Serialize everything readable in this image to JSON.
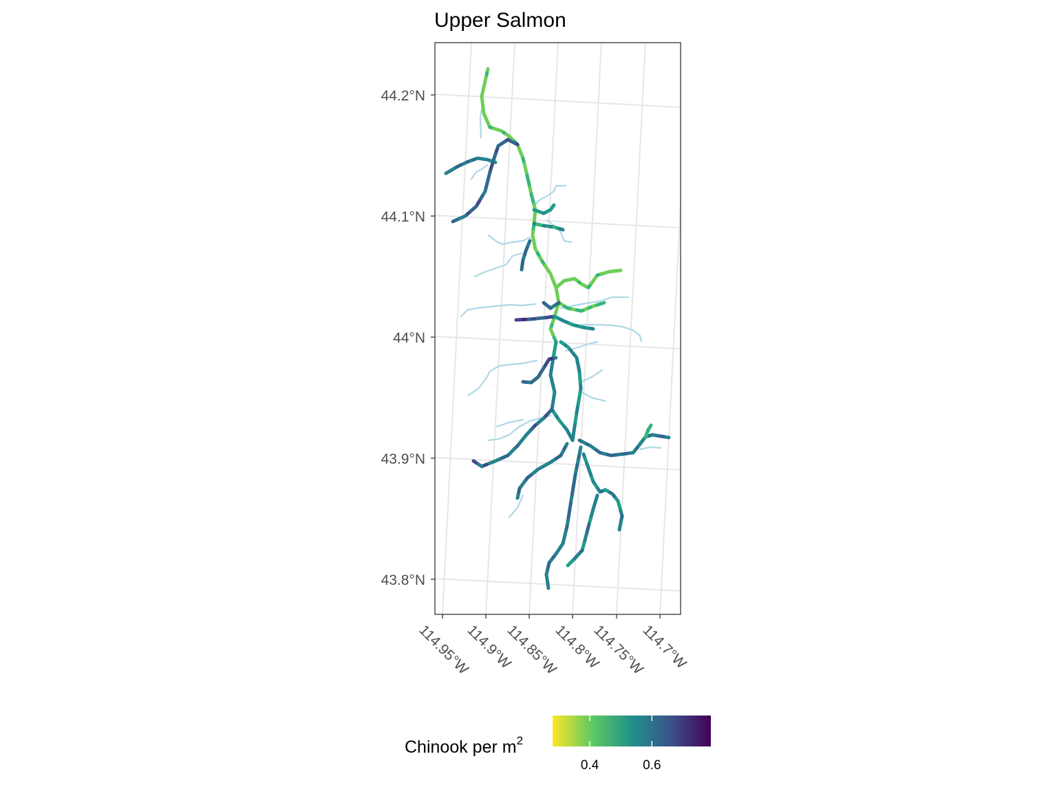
{
  "map": {
    "title": "Upper Salmon",
    "lat_ticks": [
      "44.2°N",
      "44.1°N",
      "44°N",
      "43.9°N",
      "43.8°N"
    ],
    "lon_ticks": [
      "114.95°W",
      "114.9°W",
      "114.85°W",
      "114.8°W",
      "114.75°W",
      "114.7°W"
    ],
    "extent": {
      "lon_min": -114.96,
      "lon_max": -114.68,
      "lat_min": 43.77,
      "lat_max": 44.245
    },
    "grid": true,
    "colors": {
      "background": "#ffffff",
      "gridline": "#e6e6e6",
      "panel_border": "#333333",
      "stream_unsurveyed": "#add8e6",
      "viridis_low": "#fde725",
      "viridis_high": "#440154"
    }
  },
  "legend": {
    "title_main": "Chinook per m",
    "title_sup": "2",
    "tick_labels": [
      "0.4",
      "0.6"
    ],
    "tick_values": [
      0.4,
      0.6
    ],
    "range": [
      0.28,
      0.79
    ],
    "placement": "bottom",
    "palette": "viridis (reversed)"
  }
}
